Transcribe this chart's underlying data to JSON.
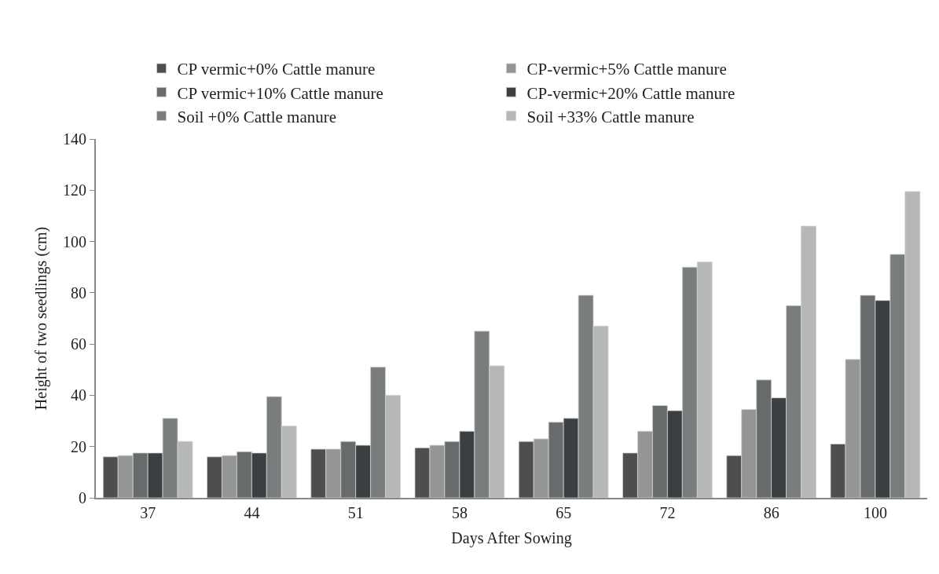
{
  "chart_data": {
    "type": "bar",
    "xlabel": "Days After Sowing",
    "ylabel": "Height of two seedlings (cm)",
    "categories": [
      "37",
      "44",
      "51",
      "58",
      "65",
      "72",
      "86",
      "100"
    ],
    "series": [
      {
        "name": "CP vermic+0% Cattle manure",
        "color": "#4d4e50",
        "values": [
          16,
          16,
          19,
          19.5,
          22,
          17.5,
          16.5,
          21
        ]
      },
      {
        "name": "CP-vermic+5% Cattle manure",
        "color": "#939596",
        "values": [
          16.5,
          16.5,
          19,
          20.5,
          23,
          26,
          34.5,
          54
        ]
      },
      {
        "name": "CP vermic+10% Cattle manure",
        "color": "#686b6c",
        "values": [
          17.5,
          18,
          22,
          22,
          29.5,
          36,
          46,
          79
        ]
      },
      {
        "name": "CP-vermic+20% Cattle manure",
        "color": "#3c3f41",
        "values": [
          17.5,
          17.5,
          20.5,
          26,
          31,
          34,
          39,
          77
        ]
      },
      {
        "name": "Soil +0% Cattle manure",
        "color": "#7a7d7e",
        "values": [
          31,
          39.5,
          51,
          65,
          79,
          90,
          75,
          95
        ]
      },
      {
        "name": "Soil +33% Cattle manure",
        "color": "#b6b8b7",
        "values": [
          22,
          28,
          40,
          51.5,
          67,
          92,
          106,
          119.5
        ]
      }
    ],
    "ylim": [
      0,
      140
    ],
    "yticks": [
      0,
      20,
      40,
      60,
      80,
      100,
      120,
      140
    ],
    "grid": false,
    "legend": "top"
  }
}
